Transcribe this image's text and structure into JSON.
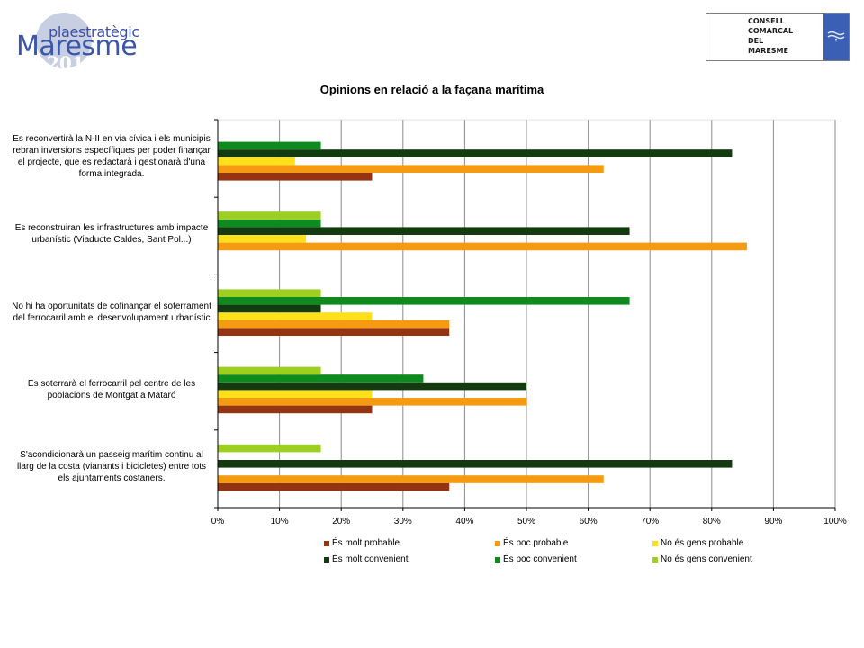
{
  "header": {
    "logo_left": {
      "top": "plaestratègic",
      "main": "Maresme",
      "year": "2015"
    },
    "logo_right": {
      "lines": [
        "CONSELL",
        "COMARCAL",
        "DEL",
        "MARESME"
      ],
      "emblem_icon": "waves-emblem-icon"
    }
  },
  "colors": {
    "es_molt_probable": "#953412",
    "es_poc_probable": "#f59b12",
    "no_es_gens_probable": "#ffe01a",
    "es_molt_convenient": "#143a0f",
    "es_poc_convenient": "#0f8a1e",
    "no_es_gens_convenient": "#9ccf1f",
    "grid": "#8c8c8c"
  },
  "chart_data": {
    "type": "bar",
    "orientation": "horizontal",
    "title": "Opinions en relació a la façana marítima",
    "xlabel": "",
    "ylabel": "",
    "xlim": [
      0,
      1
    ],
    "x_ticks": [
      "0%",
      "10%",
      "20%",
      "30%",
      "40%",
      "50%",
      "60%",
      "70%",
      "80%",
      "90%",
      "100%"
    ],
    "grid": "vertical",
    "legend_position": "bottom",
    "categories": [
      "Es reconvertirà la N-II en via cívica i els municipis rebran inversions específiques per poder finançar el projecte, que es redactarà i gestionarà d'una forma integrada.",
      "Es reconstruiran les infrastructures amb impacte urbanístic (Viaducte Caldes, Sant Pol...)",
      "No hi ha oportunitats de cofinançar el soterrament del ferrocarril amb el desenvolupament urbanístic",
      "Es soterrarà el ferrocarril pel centre de les poblacions de Montgat a Mataró",
      "S'acondicionarà un passeig marítim continu al llarg de la costa (vianants i bicicletes) entre tots els ajuntaments costaners."
    ],
    "series": [
      {
        "name": "És molt probable",
        "color_key": "es_molt_probable",
        "values": [
          0.25,
          0,
          0.375,
          0.25,
          0.375
        ]
      },
      {
        "name": "És poc probable",
        "color_key": "es_poc_probable",
        "values": [
          0.625,
          0.857,
          0.375,
          0.5,
          0.625
        ]
      },
      {
        "name": "No és gens probable",
        "color_key": "no_es_gens_probable",
        "values": [
          0.125,
          0.143,
          0.25,
          0.25,
          0
        ]
      },
      {
        "name": "És molt convenient",
        "color_key": "es_molt_convenient",
        "values": [
          0.833,
          0.667,
          0.167,
          0.5,
          0.833
        ]
      },
      {
        "name": "És poc convenient",
        "color_key": "es_poc_convenient",
        "values": [
          0.167,
          0.167,
          0.667,
          0.333,
          0
        ]
      },
      {
        "name": "No és gens convenient",
        "color_key": "no_es_gens_convenient",
        "values": [
          0,
          0.167,
          0.167,
          0.167,
          0.167
        ]
      }
    ]
  }
}
